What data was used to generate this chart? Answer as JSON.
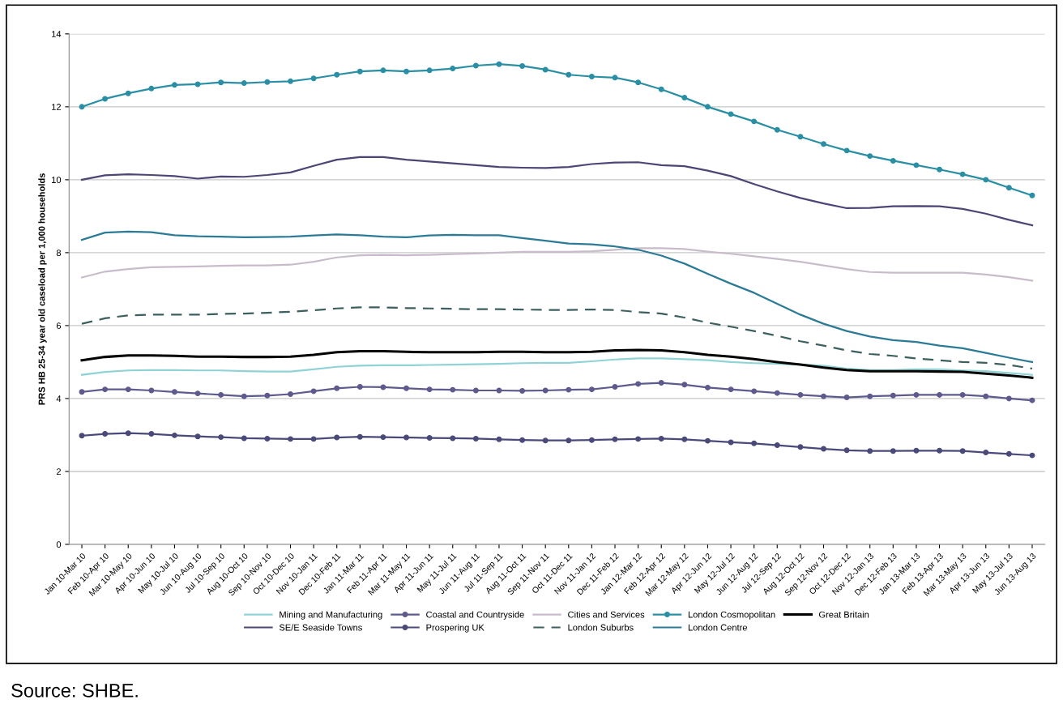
{
  "chart_data": {
    "type": "line",
    "ylabel": "PRS HB 25-34 year old caseload per 1,000 households",
    "categories": [
      "Jan 10-Mar 10",
      "Feb 10-Apr 10",
      "Mar 10-May 10",
      "Apr 10-Jun 10",
      "May 10-Jul 10",
      "Jun 10-Aug 10",
      "Jul 10-Sep 10",
      "Aug 10-Oct 10",
      "Sep 10-Nov 10",
      "Oct 10-Dec 10",
      "Nov 10-Jan 11",
      "Dec 10-Feb 11",
      "Jan 11-Mar 11",
      "Feb 11-Apr 11",
      "Mar 11-May 11",
      "Apr 11-Jun 11",
      "May 11-Jul 11",
      "Jun 11-Aug 11",
      "Jul 11-Sep 11",
      "Aug 11-Oct 11",
      "Sep 11-Nov 11",
      "Oct 11-Dec 11",
      "Nov 11-Jan 12",
      "Dec 11-Feb 12",
      "Jan 12-Mar 12",
      "Feb 12-Apr 12",
      "Mar 12-May 12",
      "Apr 12-Jun 12",
      "May 12-Jul 12",
      "Jun 12-Aug 12",
      "Jul 12-Sep 12",
      "Aug 12-Oct 12",
      "Sep 12-Nov 12",
      "Oct 12-Dec 12",
      "Nov 12-Jan 13",
      "Dec 12-Feb 13",
      "Jan 13-Mar 13",
      "Feb 13-Apr 13",
      "Mar 13-May 13",
      "Apr 13-Jun 13",
      "May 13-Jul 13",
      "Jun 13-Aug 13"
    ],
    "series": [
      {
        "name": "Mining and Manufacturing",
        "color": "#8fd3d6",
        "marker": "none",
        "line_style": "solid",
        "values": [
          4.65,
          4.73,
          4.77,
          4.78,
          4.78,
          4.77,
          4.77,
          4.75,
          4.74,
          4.74,
          4.8,
          4.87,
          4.9,
          4.91,
          4.91,
          4.92,
          4.93,
          4.94,
          4.95,
          4.97,
          4.98,
          4.98,
          5.02,
          5.07,
          5.1,
          5.1,
          5.08,
          5.05,
          5.0,
          4.97,
          4.95,
          4.93,
          4.9,
          4.82,
          4.78,
          4.78,
          4.8,
          4.8,
          4.77,
          4.75,
          4.7,
          4.65
        ]
      },
      {
        "name": "SE/E Seaside Towns",
        "color": "#4b4675",
        "marker": "none",
        "line_style": "solid",
        "values": [
          10.0,
          10.12,
          10.15,
          10.13,
          10.1,
          10.03,
          10.09,
          10.08,
          10.13,
          10.2,
          10.38,
          10.55,
          10.62,
          10.62,
          10.55,
          10.5,
          10.45,
          10.4,
          10.35,
          10.33,
          10.32,
          10.35,
          10.43,
          10.47,
          10.48,
          10.4,
          10.37,
          10.25,
          10.1,
          9.88,
          9.68,
          9.5,
          9.35,
          9.22,
          9.23,
          9.27,
          9.28,
          9.27,
          9.2,
          9.07,
          8.9,
          8.75
        ]
      },
      {
        "name": "Coastal and Countryside",
        "color": "#5e5a8e",
        "marker": "circle",
        "line_style": "solid",
        "values": [
          4.18,
          4.25,
          4.25,
          4.22,
          4.18,
          4.14,
          4.1,
          4.06,
          4.08,
          4.12,
          4.2,
          4.28,
          4.32,
          4.31,
          4.28,
          4.25,
          4.24,
          4.22,
          4.22,
          4.21,
          4.22,
          4.24,
          4.25,
          4.32,
          4.4,
          4.43,
          4.38,
          4.3,
          4.25,
          4.2,
          4.15,
          4.1,
          4.06,
          4.03,
          4.06,
          4.08,
          4.1,
          4.1,
          4.1,
          4.06,
          4.0,
          3.95
        ]
      },
      {
        "name": "Prospering UK",
        "color": "#4a4a7a",
        "marker": "circle",
        "line_style": "solid",
        "values": [
          2.98,
          3.03,
          3.05,
          3.03,
          2.99,
          2.96,
          2.94,
          2.91,
          2.9,
          2.89,
          2.89,
          2.93,
          2.95,
          2.94,
          2.93,
          2.92,
          2.91,
          2.9,
          2.88,
          2.86,
          2.85,
          2.85,
          2.86,
          2.88,
          2.89,
          2.9,
          2.88,
          2.84,
          2.8,
          2.77,
          2.72,
          2.67,
          2.62,
          2.58,
          2.56,
          2.56,
          2.57,
          2.57,
          2.56,
          2.52,
          2.48,
          2.44
        ]
      },
      {
        "name": "Cities and Services",
        "color": "#c8bccb",
        "marker": "none",
        "line_style": "solid",
        "values": [
          7.32,
          7.48,
          7.55,
          7.6,
          7.61,
          7.62,
          7.64,
          7.65,
          7.65,
          7.67,
          7.75,
          7.87,
          7.93,
          7.94,
          7.93,
          7.94,
          7.96,
          7.98,
          8.0,
          8.02,
          8.02,
          8.02,
          8.04,
          8.08,
          8.12,
          8.12,
          8.1,
          8.03,
          7.97,
          7.9,
          7.83,
          7.75,
          7.65,
          7.55,
          7.47,
          7.45,
          7.45,
          7.45,
          7.45,
          7.4,
          7.33,
          7.23
        ]
      },
      {
        "name": "London Suburbs",
        "color": "#3d5f5f",
        "marker": "none",
        "line_style": "dashed",
        "values": [
          6.05,
          6.2,
          6.28,
          6.3,
          6.3,
          6.3,
          6.32,
          6.33,
          6.35,
          6.38,
          6.42,
          6.47,
          6.5,
          6.5,
          6.48,
          6.47,
          6.46,
          6.45,
          6.45,
          6.44,
          6.43,
          6.43,
          6.44,
          6.43,
          6.37,
          6.33,
          6.22,
          6.08,
          5.97,
          5.85,
          5.72,
          5.57,
          5.45,
          5.32,
          5.22,
          5.17,
          5.1,
          5.05,
          5.0,
          4.98,
          4.92,
          4.82
        ]
      },
      {
        "name": "London Cosmopolitan",
        "color": "#2a8fa5",
        "marker": "circle",
        "line_style": "solid",
        "values": [
          12.0,
          12.22,
          12.37,
          12.5,
          12.6,
          12.62,
          12.67,
          12.65,
          12.68,
          12.7,
          12.78,
          12.88,
          12.97,
          13.0,
          12.97,
          13.0,
          13.05,
          13.13,
          13.17,
          13.12,
          13.02,
          12.88,
          12.83,
          12.8,
          12.67,
          12.48,
          12.25,
          12.0,
          11.8,
          11.6,
          11.37,
          11.18,
          10.98,
          10.8,
          10.65,
          10.52,
          10.4,
          10.28,
          10.15,
          10.0,
          9.78,
          9.57
        ]
      },
      {
        "name": "London Centre",
        "color": "#2b7a96",
        "marker": "none",
        "line_style": "solid",
        "values": [
          8.35,
          8.55,
          8.58,
          8.56,
          8.48,
          8.45,
          8.44,
          8.42,
          8.43,
          8.44,
          8.47,
          8.5,
          8.48,
          8.44,
          8.42,
          8.47,
          8.49,
          8.48,
          8.48,
          8.4,
          8.33,
          8.25,
          8.23,
          8.17,
          8.08,
          7.92,
          7.7,
          7.42,
          7.15,
          6.9,
          6.6,
          6.3,
          6.05,
          5.85,
          5.7,
          5.6,
          5.55,
          5.45,
          5.38,
          5.25,
          5.12,
          5.0
        ]
      },
      {
        "name": "Great Britain",
        "color": "#000000",
        "marker": "none",
        "line_style": "solid",
        "values": [
          5.05,
          5.14,
          5.18,
          5.18,
          5.17,
          5.15,
          5.15,
          5.14,
          5.14,
          5.15,
          5.2,
          5.27,
          5.3,
          5.3,
          5.28,
          5.27,
          5.27,
          5.27,
          5.28,
          5.28,
          5.27,
          5.27,
          5.28,
          5.32,
          5.33,
          5.32,
          5.27,
          5.2,
          5.15,
          5.08,
          5.0,
          4.93,
          4.85,
          4.78,
          4.75,
          4.75,
          4.75,
          4.74,
          4.73,
          4.68,
          4.63,
          4.57
        ]
      }
    ],
    "ylim": [
      0,
      14
    ],
    "yticks": [
      0,
      2,
      4,
      6,
      8,
      10,
      12,
      14
    ],
    "grid": "y",
    "legend": "bottom",
    "annotations": [
      "Source: SHBE."
    ]
  }
}
